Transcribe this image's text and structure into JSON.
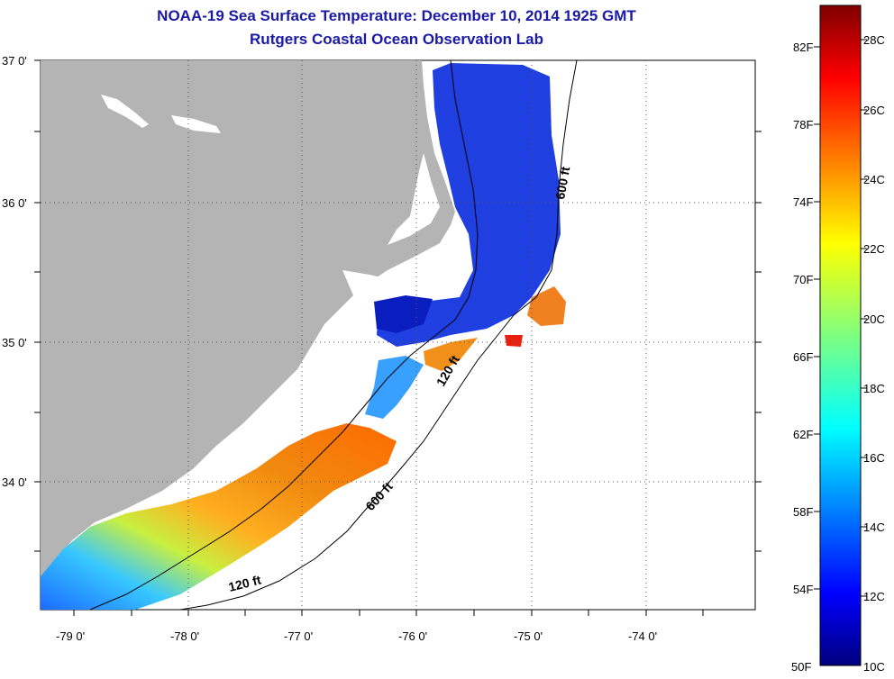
{
  "header": {
    "title": "NOAA-19 Sea Surface Temperature:  December 10, 2014 1925 GMT",
    "subtitle": "Rutgers Coastal Ocean Observation Lab"
  },
  "map": {
    "lon_ticks": [
      "-79 0'",
      "-78 0'",
      "-77 0'",
      "-76 0'",
      "-75 0'",
      "-74 0'"
    ],
    "lat_ticks": [
      "37 0'",
      "36 0'",
      "35 0'",
      "34 0'"
    ],
    "contour_labels": [
      "600 ft",
      "120 ft",
      "600 ft",
      "120 ft"
    ],
    "colors": {
      "land": "#b4b4b4",
      "water_nodata": "#ffffff",
      "grid": "#000000"
    }
  },
  "colorbar": {
    "fahrenheit": [
      "82F",
      "78F",
      "74F",
      "70F",
      "66F",
      "62F",
      "58F",
      "54F",
      "50F"
    ],
    "celsius": [
      "28C",
      "26C",
      "24C",
      "22C",
      "20C",
      "18C",
      "16C",
      "14C",
      "12C",
      "10C"
    ],
    "range_c": [
      10,
      29
    ]
  }
}
